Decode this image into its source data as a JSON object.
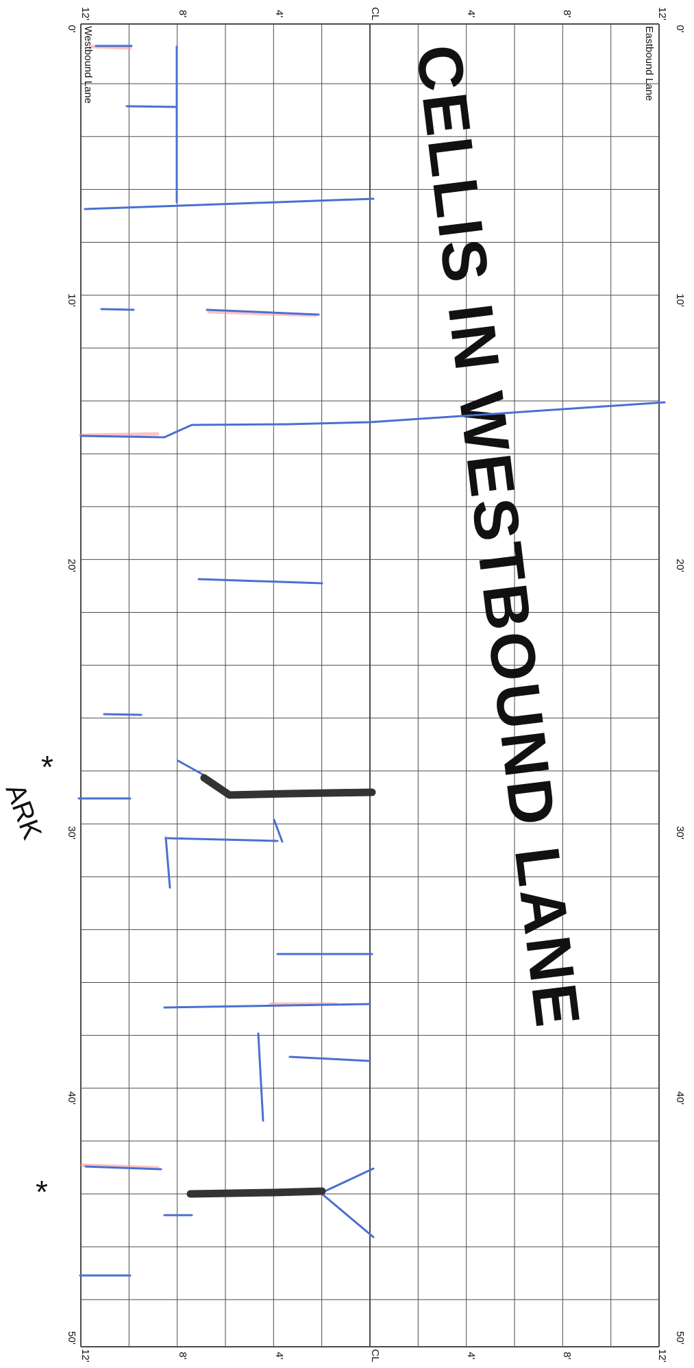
{
  "sheet": {
    "top_ticks": [
      "12'",
      "8'",
      "4'",
      "CL",
      "4'",
      "8'",
      "12'"
    ],
    "bottom_ticks": [
      "12'",
      "8'",
      "4'",
      "CL",
      "4'",
      "8'",
      "12'"
    ],
    "distance_ticks": [
      "0'",
      "10'",
      "20'",
      "30'",
      "40'",
      "50'"
    ],
    "westbound_label": "Westbound Lane",
    "eastbound_label": "Eastbound Lane",
    "watermark": "CELLIS IN WESTBOUND LANE",
    "watermark_color": "#8a8c88",
    "grid_color": "#4a4a4a",
    "ink_colors": {
      "blue": "#4a6fd1",
      "purple": "#5a3f8a",
      "black": "#333333",
      "red": "#ff8f8f"
    }
  },
  "marginalia": {
    "star_upper": "*",
    "red_note": "ARK",
    "star_lower": "*"
  }
}
